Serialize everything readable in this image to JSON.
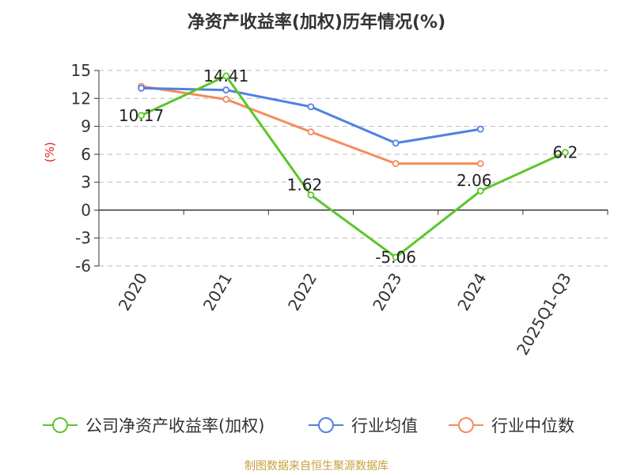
{
  "title": "净资产收益率(加权)历年情况(%)",
  "footer": "制图数据来自恒生聚源数据库",
  "chart_data": {
    "type": "line",
    "ylabel": "(%)",
    "categories": [
      "2020",
      "2021",
      "2022",
      "2023",
      "2024",
      "2025Q1-Q3"
    ],
    "ylim": [
      -6,
      15
    ],
    "yticks": [
      -6,
      -3,
      0,
      3,
      6,
      9,
      12,
      15
    ],
    "grid": true,
    "legend_position": "bottom",
    "series": [
      {
        "name": "公司净资产收益率(加权)",
        "color": "#5cc52a",
        "values": [
          10.17,
          14.41,
          1.62,
          -5.06,
          2.06,
          6.2
        ],
        "labels": [
          "10.17",
          "14.41",
          "1.62",
          "-5.06",
          "2.06",
          "6.2"
        ]
      },
      {
        "name": "行业均值",
        "color": "#4f81e0",
        "values": [
          13.1,
          12.9,
          11.1,
          7.2,
          8.7,
          null
        ]
      },
      {
        "name": "行业中位数",
        "color": "#f28d5c",
        "values": [
          13.3,
          11.9,
          8.4,
          5.0,
          5.0,
          null
        ]
      }
    ]
  }
}
